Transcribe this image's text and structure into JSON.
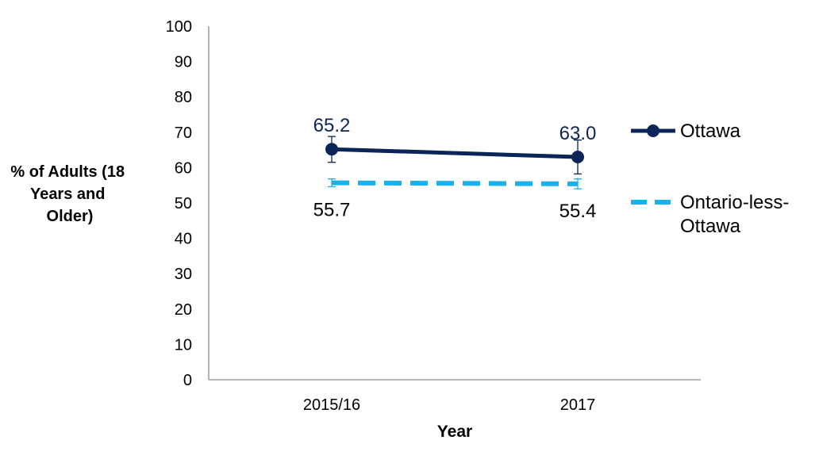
{
  "chart_data": {
    "type": "line",
    "title": "",
    "xlabel": "Year",
    "ylabel_lines": [
      "% of Adults (18",
      "Years and",
      "Older)"
    ],
    "categories": [
      "2015/16",
      "2017"
    ],
    "ylim": [
      0,
      100
    ],
    "yticks": [
      0,
      10,
      20,
      30,
      40,
      50,
      60,
      70,
      80,
      90,
      100
    ],
    "grid": false,
    "legend_position": "right",
    "series": [
      {
        "name": "Ottawa",
        "legend_lines": [
          "Ottawa"
        ],
        "values": [
          65.2,
          63.0
        ],
        "labels": [
          "65.2",
          "63.0"
        ],
        "error_low": [
          61.5,
          58.2
        ],
        "error_high": [
          68.8,
          67.8
        ],
        "color": "#0b2559",
        "style": "solid",
        "marker": "circle"
      },
      {
        "name": "Ontario-less-Ottawa",
        "legend_lines": [
          "Ontario-less-",
          "Ottawa"
        ],
        "values": [
          55.7,
          55.4
        ],
        "labels": [
          "55.7",
          "55.4"
        ],
        "error_low": [
          54.6,
          54.0
        ],
        "error_high": [
          56.8,
          56.8
        ],
        "color": "#1ab0ea",
        "style": "dashed",
        "marker": "none"
      }
    ]
  }
}
